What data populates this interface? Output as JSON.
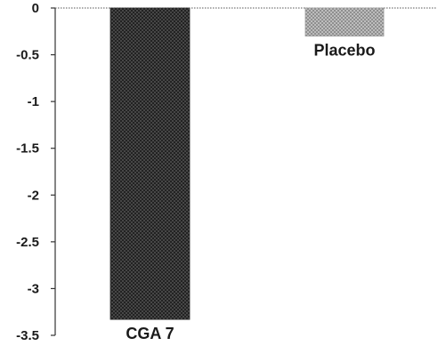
{
  "chart_data": {
    "type": "bar",
    "title": "",
    "xlabel": "",
    "ylabel": "",
    "categories": [
      "CGA 7",
      "Placebo"
    ],
    "values": [
      -3.33,
      -0.3
    ],
    "ylim": [
      -3.5,
      0
    ],
    "yticks": [
      "0",
      "-0.5",
      "-1",
      "-1.5",
      "-2",
      "-2.5",
      "-3",
      "-3.5"
    ],
    "ytick_values": [
      0,
      -0.5,
      -1,
      -1.5,
      -2,
      -2.5,
      -3,
      -3.5
    ],
    "grid": false,
    "legend": "none",
    "bar_colors": [
      "#3d3d3d",
      "#a8a8a8"
    ]
  }
}
